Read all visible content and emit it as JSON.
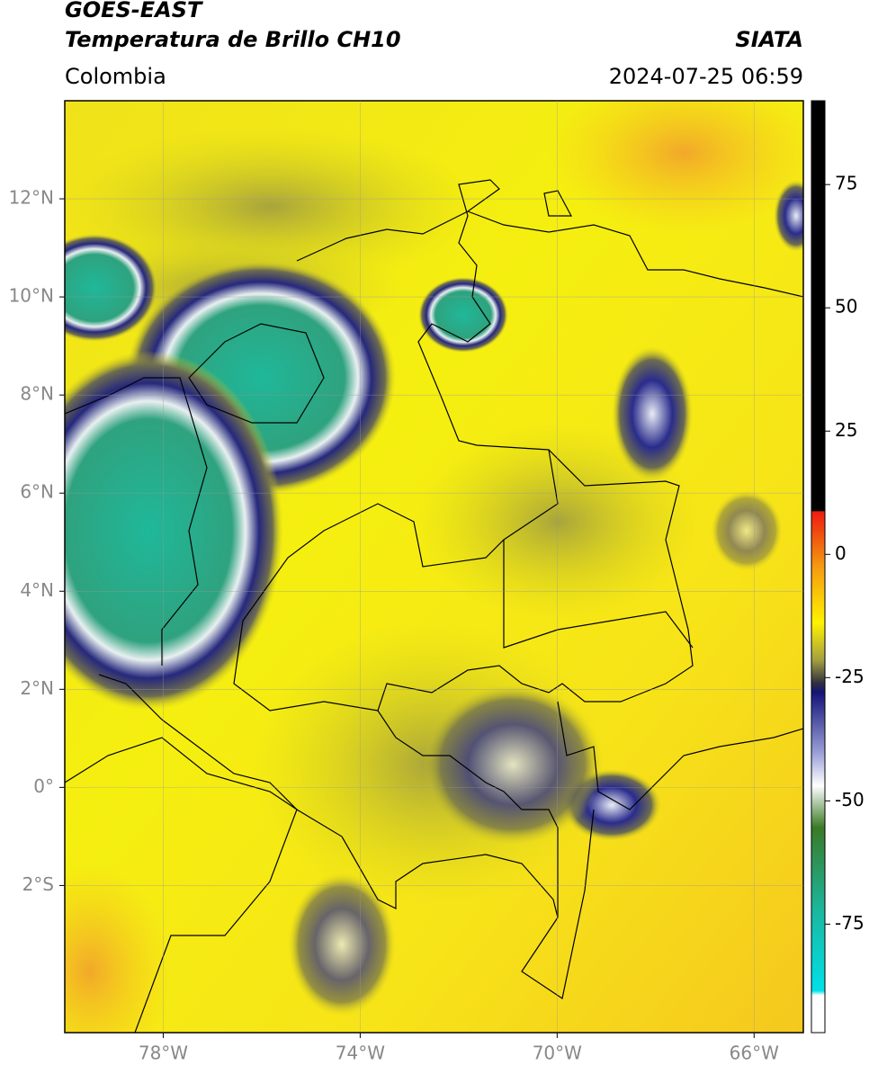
{
  "header": {
    "title": "GOES-EAST",
    "subtitle": "Temperatura de Brillo CH10",
    "region": "Colombia",
    "source": "SIATA",
    "datetime": "2024-07-25 06:59"
  },
  "map": {
    "xlim": [
      -80,
      -65
    ],
    "ylim": [
      -5,
      14
    ],
    "xticks": [
      {
        "value": -78,
        "label": "78°W"
      },
      {
        "value": -74,
        "label": "74°W"
      },
      {
        "value": -70,
        "label": "70°W"
      },
      {
        "value": -66,
        "label": "66°W"
      }
    ],
    "yticks": [
      {
        "value": 12,
        "label": "12°N"
      },
      {
        "value": 10,
        "label": "10°N"
      },
      {
        "value": 8,
        "label": "8°N"
      },
      {
        "value": 6,
        "label": "6°N"
      },
      {
        "value": 4,
        "label": "4°N"
      },
      {
        "value": 2,
        "label": "2°N"
      },
      {
        "value": 0,
        "label": "0°"
      },
      {
        "value": -2,
        "label": "2°S"
      }
    ]
  },
  "colorbar": {
    "lim": [
      -97,
      92
    ],
    "ticks": [
      75,
      50,
      25,
      0,
      -25,
      -50,
      -75
    ]
  }
}
